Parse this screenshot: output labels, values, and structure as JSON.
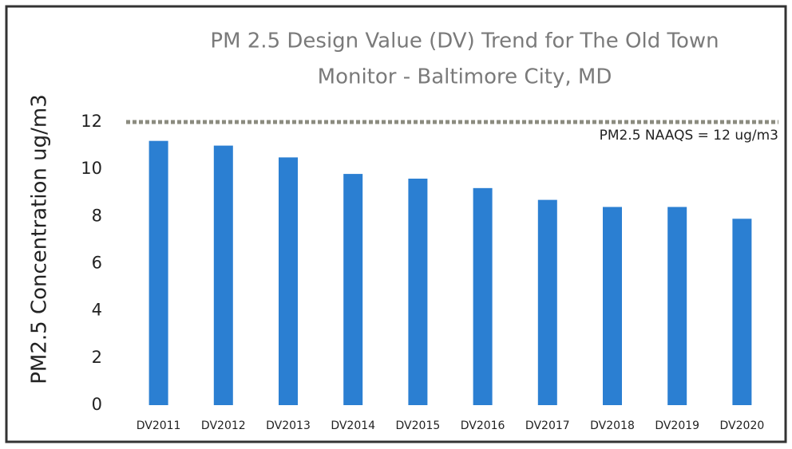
{
  "chart_data": {
    "type": "bar",
    "title": [
      "PM 2.5 Design Value (DV) Trend for The Old Town",
      "Monitor - Baltimore City, MD"
    ],
    "y_label": "PM2.5 Concentration ug/m3",
    "categories": [
      "DV2011",
      "DV2012",
      "DV2013",
      "DV2014",
      "DV2015",
      "DV2016",
      "DV2017",
      "DV2018",
      "DV2019",
      "DV2020"
    ],
    "values": [
      11.2,
      11.0,
      10.5,
      9.8,
      9.6,
      9.2,
      8.7,
      8.4,
      8.4,
      7.9
    ],
    "color": "#2b7fd2",
    "ylim": [
      0,
      12
    ],
    "yticks": [
      0,
      2,
      4,
      6,
      8,
      10,
      12
    ],
    "grid": false,
    "reference_line": {
      "value": 12,
      "label": "PM2.5 NAAQS = 12 ug/m3",
      "color": "#8c8c80"
    }
  }
}
